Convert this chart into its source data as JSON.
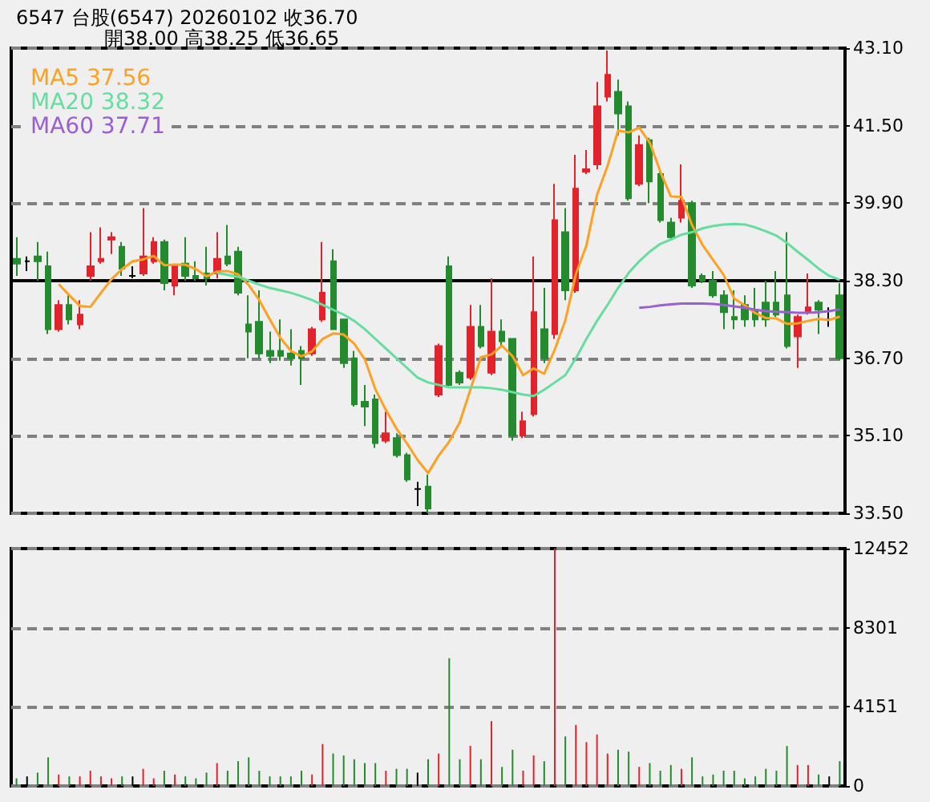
{
  "chart_data": [
    {
      "type": "candlestick",
      "title": "6547 台股(6547) 20260102 收36.70",
      "subtitle": "開38.00 高38.25 低36.65",
      "categories": [
        null,
        null,
        null,
        null,
        null,
        null,
        null,
        null,
        null,
        null,
        null,
        null,
        null,
        null,
        null,
        null,
        null,
        null,
        null,
        null,
        null,
        null,
        null,
        null,
        null,
        null,
        null,
        null,
        null,
        null,
        null,
        null,
        null,
        null,
        null,
        null,
        null,
        null,
        null,
        null,
        null,
        null,
        null,
        null,
        null,
        null,
        null,
        null,
        null,
        null,
        null,
        null,
        null,
        null,
        null,
        null,
        null,
        null,
        null,
        null,
        null,
        null,
        null,
        null,
        null,
        null,
        null,
        null,
        null,
        null,
        null,
        null,
        null,
        null,
        null,
        null,
        null,
        null,
        null
      ],
      "ohlc": [
        [
          38.75,
          39.2,
          38.4,
          38.65
        ],
        [
          38.7,
          38.8,
          38.5,
          38.7
        ],
        [
          38.8,
          39.1,
          38.3,
          38.7
        ],
        [
          38.6,
          38.9,
          37.2,
          37.3
        ],
        [
          37.3,
          37.9,
          37.25,
          37.8
        ],
        [
          37.8,
          38.0,
          37.4,
          37.5
        ],
        [
          37.4,
          37.9,
          37.3,
          37.6
        ],
        [
          38.4,
          39.3,
          38.3,
          38.6
        ],
        [
          38.7,
          39.4,
          38.65,
          38.75
        ],
        [
          39.15,
          39.3,
          38.85,
          39.2
        ],
        [
          39.0,
          39.1,
          38.4,
          38.55
        ],
        [
          38.4,
          38.6,
          38.35,
          38.4
        ],
        [
          38.45,
          39.8,
          38.4,
          38.8
        ],
        [
          38.7,
          39.2,
          38.65,
          39.1
        ],
        [
          39.1,
          39.15,
          38.1,
          38.25
        ],
        [
          38.2,
          38.65,
          38.0,
          38.6
        ],
        [
          38.65,
          39.2,
          38.3,
          38.4
        ],
        [
          38.4,
          38.7,
          38.3,
          38.35
        ],
        [
          38.45,
          39.0,
          38.2,
          38.35
        ],
        [
          38.45,
          39.3,
          38.35,
          38.75
        ],
        [
          38.8,
          39.45,
          38.6,
          38.65
        ],
        [
          38.9,
          39.0,
          38.0,
          38.05
        ],
        [
          37.4,
          38.0,
          36.7,
          37.25
        ],
        [
          37.45,
          38.1,
          36.7,
          36.8
        ],
        [
          36.85,
          37.25,
          36.6,
          36.75
        ],
        [
          36.85,
          37.5,
          36.65,
          36.75
        ],
        [
          36.8,
          37.3,
          36.55,
          36.7
        ],
        [
          36.85,
          36.95,
          36.15,
          36.7
        ],
        [
          36.8,
          37.35,
          36.75,
          37.3
        ],
        [
          37.5,
          39.1,
          37.45,
          38.05
        ],
        [
          38.7,
          38.95,
          37.3,
          37.3
        ],
        [
          37.5,
          37.5,
          36.5,
          36.6
        ],
        [
          36.7,
          36.85,
          35.7,
          35.75
        ],
        [
          35.8,
          36.15,
          35.3,
          35.7
        ],
        [
          35.85,
          35.95,
          34.85,
          34.95
        ],
        [
          35.0,
          35.6,
          34.95,
          35.15
        ],
        [
          35.05,
          35.15,
          34.65,
          34.7
        ],
        [
          34.7,
          34.75,
          34.15,
          34.2
        ],
        [
          34.0,
          34.15,
          33.65,
          34.0
        ],
        [
          34.05,
          34.3,
          33.5,
          33.6
        ],
        [
          35.95,
          37.0,
          35.9,
          36.95
        ],
        [
          38.6,
          38.8,
          36.1,
          36.15
        ],
        [
          36.4,
          36.45,
          36.15,
          36.2
        ],
        [
          36.3,
          37.8,
          36.25,
          37.35
        ],
        [
          37.35,
          37.8,
          36.9,
          36.95
        ],
        [
          36.4,
          38.35,
          36.35,
          37.25
        ],
        [
          37.25,
          37.5,
          36.95,
          37.05
        ],
        [
          37.1,
          37.1,
          35.0,
          35.1
        ],
        [
          35.1,
          35.6,
          35.05,
          35.4
        ],
        [
          35.55,
          38.8,
          35.5,
          37.65
        ],
        [
          37.3,
          38.15,
          36.6,
          36.7
        ],
        [
          37.2,
          40.3,
          37.1,
          39.55
        ],
        [
          39.3,
          39.8,
          37.9,
          38.1
        ],
        [
          38.1,
          40.9,
          38.05,
          40.2
        ],
        [
          40.55,
          41.0,
          40.5,
          40.6
        ],
        [
          40.7,
          42.4,
          40.6,
          41.9
        ],
        [
          42.1,
          43.05,
          42.0,
          42.55
        ],
        [
          42.2,
          42.45,
          41.3,
          41.75
        ],
        [
          41.9,
          42.0,
          39.95,
          40.0
        ],
        [
          40.3,
          41.3,
          40.25,
          41.1
        ],
        [
          41.2,
          41.25,
          39.9,
          40.35
        ],
        [
          40.5,
          40.55,
          39.5,
          39.55
        ],
        [
          39.5,
          39.6,
          39.15,
          39.2
        ],
        [
          39.6,
          40.7,
          39.5,
          39.95
        ],
        [
          39.9,
          39.95,
          38.15,
          38.2
        ],
        [
          38.4,
          38.45,
          38.25,
          38.3
        ],
        [
          38.3,
          38.5,
          37.95,
          38.0
        ],
        [
          38.0,
          38.1,
          37.3,
          37.65
        ],
        [
          37.55,
          38.1,
          37.3,
          37.5
        ],
        [
          37.8,
          38.0,
          37.35,
          37.5
        ],
        [
          37.7,
          38.15,
          37.35,
          37.5
        ],
        [
          37.85,
          38.3,
          37.35,
          37.5
        ],
        [
          37.85,
          38.5,
          37.55,
          37.6
        ],
        [
          38.0,
          39.3,
          36.9,
          36.95
        ],
        [
          37.15,
          37.6,
          36.5,
          37.55
        ],
        [
          37.65,
          38.45,
          37.6,
          37.75
        ],
        [
          37.85,
          37.9,
          37.2,
          37.7
        ],
        [
          37.5,
          37.75,
          37.35,
          37.5
        ],
        [
          38.0,
          38.25,
          36.65,
          36.7
        ]
      ],
      "colors": [
        "#238b2e",
        "#000000",
        "#238b2e",
        "#238b2e",
        "#e3232b",
        "#238b2e",
        "#e3232b",
        "#e3232b",
        "#e3232b",
        "#e3232b",
        "#238b2e",
        "#000000",
        "#e3232b",
        "#e3232b",
        "#238b2e",
        "#e3232b",
        "#238b2e",
        "#238b2e",
        "#238b2e",
        "#e3232b",
        "#238b2e",
        "#238b2e",
        "#238b2e",
        "#238b2e",
        "#238b2e",
        "#238b2e",
        "#238b2e",
        "#238b2e",
        "#e3232b",
        "#e3232b",
        "#238b2e",
        "#238b2e",
        "#238b2e",
        "#238b2e",
        "#238b2e",
        "#e3232b",
        "#238b2e",
        "#238b2e",
        "#000000",
        "#238b2e",
        "#e3232b",
        "#238b2e",
        "#238b2e",
        "#e3232b",
        "#238b2e",
        "#e3232b",
        "#238b2e",
        "#238b2e",
        "#e3232b",
        "#e3232b",
        "#238b2e",
        "#e3232b",
        "#238b2e",
        "#e3232b",
        "#e3232b",
        "#e3232b",
        "#e3232b",
        "#238b2e",
        "#238b2e",
        "#e3232b",
        "#238b2e",
        "#238b2e",
        "#238b2e",
        "#e3232b",
        "#238b2e",
        "#238b2e",
        "#238b2e",
        "#238b2e",
        "#238b2e",
        "#238b2e",
        "#238b2e",
        "#238b2e",
        "#238b2e",
        "#238b2e",
        "#e3232b",
        "#e3232b",
        "#238b2e",
        "#000000",
        "#238b2e"
      ],
      "series": [
        {
          "type": "line",
          "name": "MA5 37.56",
          "color": "#ffa020",
          "values": [
            null,
            null,
            null,
            null,
            38.23,
            38.0,
            37.78,
            37.76,
            38.05,
            38.33,
            38.54,
            38.7,
            38.74,
            38.81,
            38.62,
            38.63,
            38.63,
            38.54,
            38.39,
            38.49,
            38.5,
            38.43,
            38.21,
            37.9,
            37.5,
            37.12,
            36.85,
            36.74,
            36.84,
            37.1,
            37.21,
            37.19,
            37.0,
            36.68,
            36.06,
            35.63,
            35.25,
            34.94,
            34.6,
            34.33,
            34.69,
            34.98,
            35.38,
            36.05,
            36.72,
            36.78,
            36.96,
            36.74,
            36.35,
            36.49,
            36.38,
            36.88,
            37.48,
            38.44,
            39.03,
            40.07,
            40.67,
            41.4,
            41.36,
            41.46,
            41.15,
            40.55,
            40.04,
            40.03,
            39.45,
            39.04,
            38.73,
            38.42,
            37.93,
            37.79,
            37.63,
            37.53,
            37.52,
            37.41,
            37.42,
            37.47,
            37.51,
            37.49,
            37.56
          ]
        },
        {
          "type": "line",
          "name": "MA20 38.32",
          "color": "#66dd9f",
          "values": [
            null,
            null,
            null,
            null,
            null,
            null,
            null,
            null,
            null,
            null,
            null,
            null,
            null,
            null,
            null,
            null,
            null,
            null,
            null,
            38.46,
            38.42,
            38.38,
            38.3,
            38.22,
            38.15,
            38.1,
            38.05,
            37.98,
            37.9,
            37.8,
            37.7,
            37.6,
            37.47,
            37.3,
            37.1,
            36.9,
            36.7,
            36.5,
            36.3,
            36.2,
            36.15,
            36.1,
            36.1,
            36.1,
            36.1,
            36.08,
            36.05,
            36.0,
            35.95,
            35.92,
            36.05,
            36.2,
            36.35,
            36.7,
            37.1,
            37.47,
            37.8,
            38.15,
            38.46,
            38.7,
            38.9,
            39.06,
            39.15,
            39.25,
            39.3,
            39.38,
            39.43,
            39.46,
            39.47,
            39.46,
            39.4,
            39.32,
            39.23,
            39.08,
            38.9,
            38.73,
            38.55,
            38.4,
            38.32
          ]
        },
        {
          "type": "line",
          "name": "MA60 37.71",
          "color": "#9a5fd0",
          "values": [
            null,
            null,
            null,
            null,
            null,
            null,
            null,
            null,
            null,
            null,
            null,
            null,
            null,
            null,
            null,
            null,
            null,
            null,
            null,
            null,
            null,
            null,
            null,
            null,
            null,
            null,
            null,
            null,
            null,
            null,
            null,
            null,
            null,
            null,
            null,
            null,
            null,
            null,
            null,
            null,
            null,
            null,
            null,
            null,
            null,
            null,
            null,
            null,
            null,
            null,
            null,
            null,
            null,
            null,
            null,
            null,
            null,
            null,
            null,
            37.74,
            37.76,
            37.79,
            37.81,
            37.83,
            37.83,
            37.83,
            37.82,
            37.8,
            37.77,
            37.74,
            37.7,
            37.67,
            37.66,
            37.65,
            37.64,
            37.64,
            37.65,
            37.67,
            37.71
          ]
        }
      ],
      "ylim": [
        33.5,
        43.1
      ],
      "yticks": [
        {
          "value": 33.5,
          "label": "33.50"
        },
        {
          "value": 35.1,
          "label": "35.10"
        },
        {
          "value": 36.7,
          "label": "36.70"
        },
        {
          "value": 38.3,
          "label": "38.30"
        },
        {
          "value": 39.9,
          "label": "39.90"
        },
        {
          "value": 41.5,
          "label": "41.50"
        },
        {
          "value": 43.1,
          "label": "43.10"
        }
      ],
      "ref_lines": [
        {
          "axis": "y",
          "value": 38.3,
          "color": "#000000"
        }
      ],
      "grid": "y",
      "legend": "top left",
      "tick_labels": "y"
    },
    {
      "type": "bar",
      "categories": [
        null,
        null,
        null,
        null,
        null,
        null,
        null,
        null,
        null,
        null,
        null,
        null,
        null,
        null,
        null,
        null,
        null,
        null,
        null,
        null,
        null,
        null,
        null,
        null,
        null,
        null,
        null,
        null,
        null,
        null,
        null,
        null,
        null,
        null,
        null,
        null,
        null,
        null,
        null,
        null,
        null,
        null,
        null,
        null,
        null,
        null,
        null,
        null,
        null,
        null,
        null,
        null,
        null,
        null,
        null,
        null,
        null,
        null,
        null,
        null,
        null,
        null,
        null,
        null,
        null,
        null,
        null,
        null,
        null,
        null,
        null,
        null,
        null,
        null,
        null,
        null,
        null,
        null,
        null
      ],
      "values": [
        400,
        500,
        700,
        1500,
        600,
        500,
        500,
        800,
        500,
        400,
        500,
        500,
        900,
        400,
        800,
        600,
        500,
        400,
        700,
        1200,
        800,
        1300,
        1500,
        800,
        500,
        500,
        500,
        800,
        600,
        2200,
        1700,
        1600,
        1400,
        1200,
        1200,
        800,
        900,
        900,
        700,
        1400,
        1700,
        6700,
        1400,
        2100,
        1400,
        3400,
        1000,
        1900,
        800,
        1600,
        1300,
        12452,
        2600,
        3200,
        2300,
        2700,
        1700,
        1900,
        1800,
        1000,
        1200,
        800,
        1100,
        900,
        1500,
        500,
        600,
        800,
        800,
        400,
        500,
        900,
        800,
        2100,
        1100,
        1100,
        600,
        500,
        1300
      ],
      "colors": [
        "#238b2e",
        "#000000",
        "#238b2e",
        "#238b2e",
        "#e3232b",
        "#238b2e",
        "#e3232b",
        "#e3232b",
        "#e3232b",
        "#e3232b",
        "#238b2e",
        "#000000",
        "#e3232b",
        "#e3232b",
        "#238b2e",
        "#e3232b",
        "#238b2e",
        "#238b2e",
        "#238b2e",
        "#e3232b",
        "#238b2e",
        "#238b2e",
        "#238b2e",
        "#238b2e",
        "#238b2e",
        "#238b2e",
        "#238b2e",
        "#238b2e",
        "#e3232b",
        "#e3232b",
        "#238b2e",
        "#238b2e",
        "#238b2e",
        "#238b2e",
        "#238b2e",
        "#e3232b",
        "#238b2e",
        "#238b2e",
        "#000000",
        "#238b2e",
        "#e3232b",
        "#238b2e",
        "#238b2e",
        "#e3232b",
        "#238b2e",
        "#e3232b",
        "#238b2e",
        "#238b2e",
        "#e3232b",
        "#e3232b",
        "#238b2e",
        "#e3232b",
        "#238b2e",
        "#e3232b",
        "#e3232b",
        "#e3232b",
        "#e3232b",
        "#238b2e",
        "#238b2e",
        "#e3232b",
        "#238b2e",
        "#238b2e",
        "#238b2e",
        "#e3232b",
        "#238b2e",
        "#238b2e",
        "#238b2e",
        "#238b2e",
        "#238b2e",
        "#238b2e",
        "#238b2e",
        "#238b2e",
        "#238b2e",
        "#238b2e",
        "#e3232b",
        "#e3232b",
        "#238b2e",
        "#000000",
        "#238b2e"
      ],
      "ylim": [
        0,
        12452
      ],
      "yticks": [
        0,
        4151,
        8301,
        12452
      ],
      "grid": "y",
      "tick_labels": "y"
    }
  ]
}
